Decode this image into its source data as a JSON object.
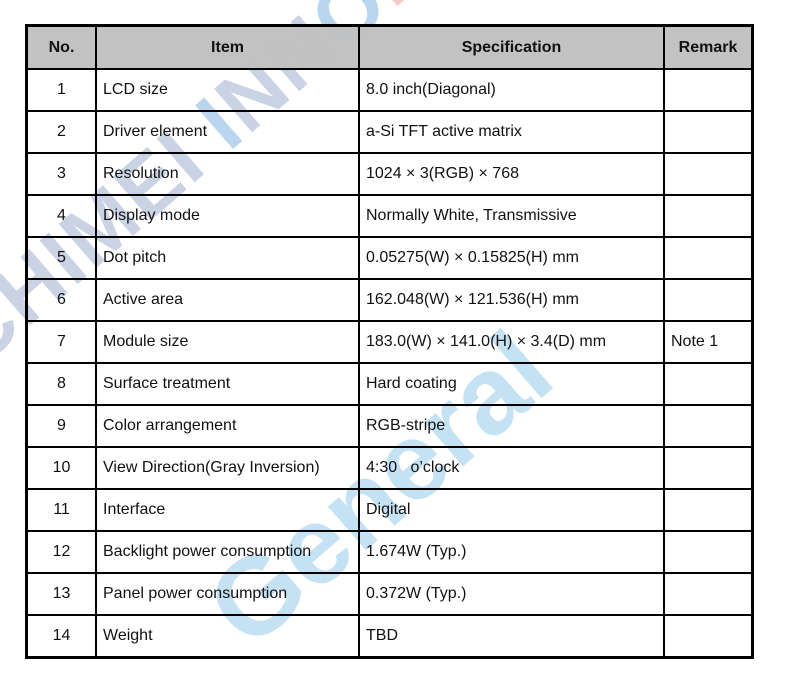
{
  "watermark": {
    "brand": "CHIMEI INNOLUX",
    "sub": "General"
  },
  "table": {
    "headers": [
      "No.",
      "Item",
      "Specification",
      "Remark"
    ],
    "rows": [
      [
        "1",
        "LCD size",
        "8.0 inch(Diagonal)",
        ""
      ],
      [
        "2",
        "Driver element",
        "a-Si TFT active matrix",
        ""
      ],
      [
        "3",
        "Resolution",
        "1024 × 3(RGB) × 768",
        ""
      ],
      [
        "4",
        "Display mode",
        "Normally White, Transmissive",
        ""
      ],
      [
        "5",
        "Dot pitch",
        "0.05275(W) × 0.15825(H) mm",
        ""
      ],
      [
        "6",
        "Active area",
        "162.048(W) × 121.536(H) mm",
        ""
      ],
      [
        "7",
        "Module size",
        "183.0(W) × 141.0(H) × 3.4(D) mm",
        "Note 1"
      ],
      [
        "8",
        "Surface treatment",
        "Hard coating",
        ""
      ],
      [
        "9",
        "Color arrangement",
        "RGB-stripe",
        ""
      ],
      [
        "10",
        "View Direction(Gray Inversion)",
        "4:30   o’clock",
        ""
      ],
      [
        "11",
        "Interface",
        "Digital",
        ""
      ],
      [
        "12",
        "Backlight power consumption",
        "1.674W (Typ.)",
        ""
      ],
      [
        "13",
        "Panel power consumption",
        "0.372W (Typ.)",
        ""
      ],
      [
        "14",
        "Weight",
        "TBD",
        ""
      ]
    ]
  }
}
